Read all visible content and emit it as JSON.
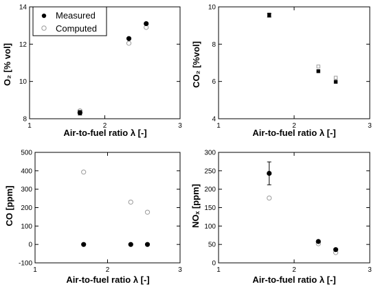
{
  "legend": {
    "measured_label": "Measured",
    "computed_label": "Computed"
  },
  "colors": {
    "measured": "#000000",
    "computed": "#9a9a9a",
    "axis": "#000000"
  },
  "chart_data": [
    {
      "id": "o2",
      "type": "scatter",
      "title": "",
      "xlabel": "Air-to-fuel ratio λ [-]",
      "ylabel": "O₂ [% vol]",
      "xlim": [
        1,
        3
      ],
      "ylim": [
        8,
        14
      ],
      "xticks": [
        1,
        2,
        3
      ],
      "yticks": [
        8,
        10,
        12,
        14
      ],
      "legend": true,
      "series": [
        {
          "name": "Measured",
          "marker": "filled-circle",
          "points": [
            {
              "x": 1.67,
              "y": 8.32,
              "err": 0.12
            },
            {
              "x": 2.32,
              "y": 12.3
            },
            {
              "x": 2.55,
              "y": 13.1
            }
          ]
        },
        {
          "name": "Computed",
          "marker": "open-circle",
          "points": [
            {
              "x": 1.67,
              "y": 8.42
            },
            {
              "x": 2.32,
              "y": 12.05
            },
            {
              "x": 2.55,
              "y": 12.9
            }
          ]
        }
      ]
    },
    {
      "id": "co2",
      "type": "scatter",
      "title": "",
      "xlabel": "Air-to-fuel ratio λ  [-]",
      "ylabel": "CO₂ [%vol]",
      "xlim": [
        1,
        3
      ],
      "ylim": [
        4,
        10
      ],
      "xticks": [
        1,
        2,
        3
      ],
      "yticks": [
        4,
        6,
        8,
        10
      ],
      "legend": false,
      "series": [
        {
          "name": "Measured",
          "marker": "filled-square",
          "points": [
            {
              "x": 1.67,
              "y": 9.55,
              "err": 0.1
            },
            {
              "x": 2.32,
              "y": 6.55
            },
            {
              "x": 2.55,
              "y": 5.98
            }
          ]
        },
        {
          "name": "Computed",
          "marker": "open-square",
          "points": [
            {
              "x": 1.67,
              "y": 9.6
            },
            {
              "x": 2.32,
              "y": 6.8
            },
            {
              "x": 2.55,
              "y": 6.2
            }
          ]
        }
      ]
    },
    {
      "id": "co",
      "type": "scatter",
      "title": "",
      "xlabel": "Air-to-fuel ratio λ  [-]",
      "ylabel": "CO [ppm]",
      "xlim": [
        1,
        3
      ],
      "ylim": [
        -100,
        500
      ],
      "xticks": [
        1,
        2,
        3
      ],
      "yticks": [
        -100,
        0,
        100,
        200,
        300,
        400,
        500
      ],
      "legend": false,
      "series": [
        {
          "name": "Measured",
          "marker": "filled-circle",
          "points": [
            {
              "x": 1.67,
              "y": 0
            },
            {
              "x": 2.32,
              "y": 0
            },
            {
              "x": 2.55,
              "y": 0
            }
          ]
        },
        {
          "name": "Computed",
          "marker": "open-circle",
          "points": [
            {
              "x": 1.67,
              "y": 393
            },
            {
              "x": 2.32,
              "y": 230
            },
            {
              "x": 2.55,
              "y": 175
            }
          ]
        }
      ]
    },
    {
      "id": "nox",
      "type": "scatter",
      "title": "",
      "xlabel": "Air-to-fuel ratio λ  [-]",
      "ylabel": "NOₓ [ppm]",
      "xlim": [
        1,
        3
      ],
      "ylim": [
        0,
        300
      ],
      "xticks": [
        1,
        2,
        3
      ],
      "yticks": [
        0,
        50,
        100,
        150,
        200,
        250,
        300
      ],
      "legend": false,
      "series": [
        {
          "name": "Measured",
          "marker": "filled-circle",
          "points": [
            {
              "x": 1.67,
              "y": 243,
              "err": 31
            },
            {
              "x": 2.32,
              "y": 58,
              "err": 3
            },
            {
              "x": 2.55,
              "y": 36,
              "err": 2
            }
          ]
        },
        {
          "name": "Computed",
          "marker": "open-circle",
          "points": [
            {
              "x": 1.67,
              "y": 176
            },
            {
              "x": 2.32,
              "y": 52
            },
            {
              "x": 2.55,
              "y": 28
            }
          ]
        }
      ]
    }
  ]
}
